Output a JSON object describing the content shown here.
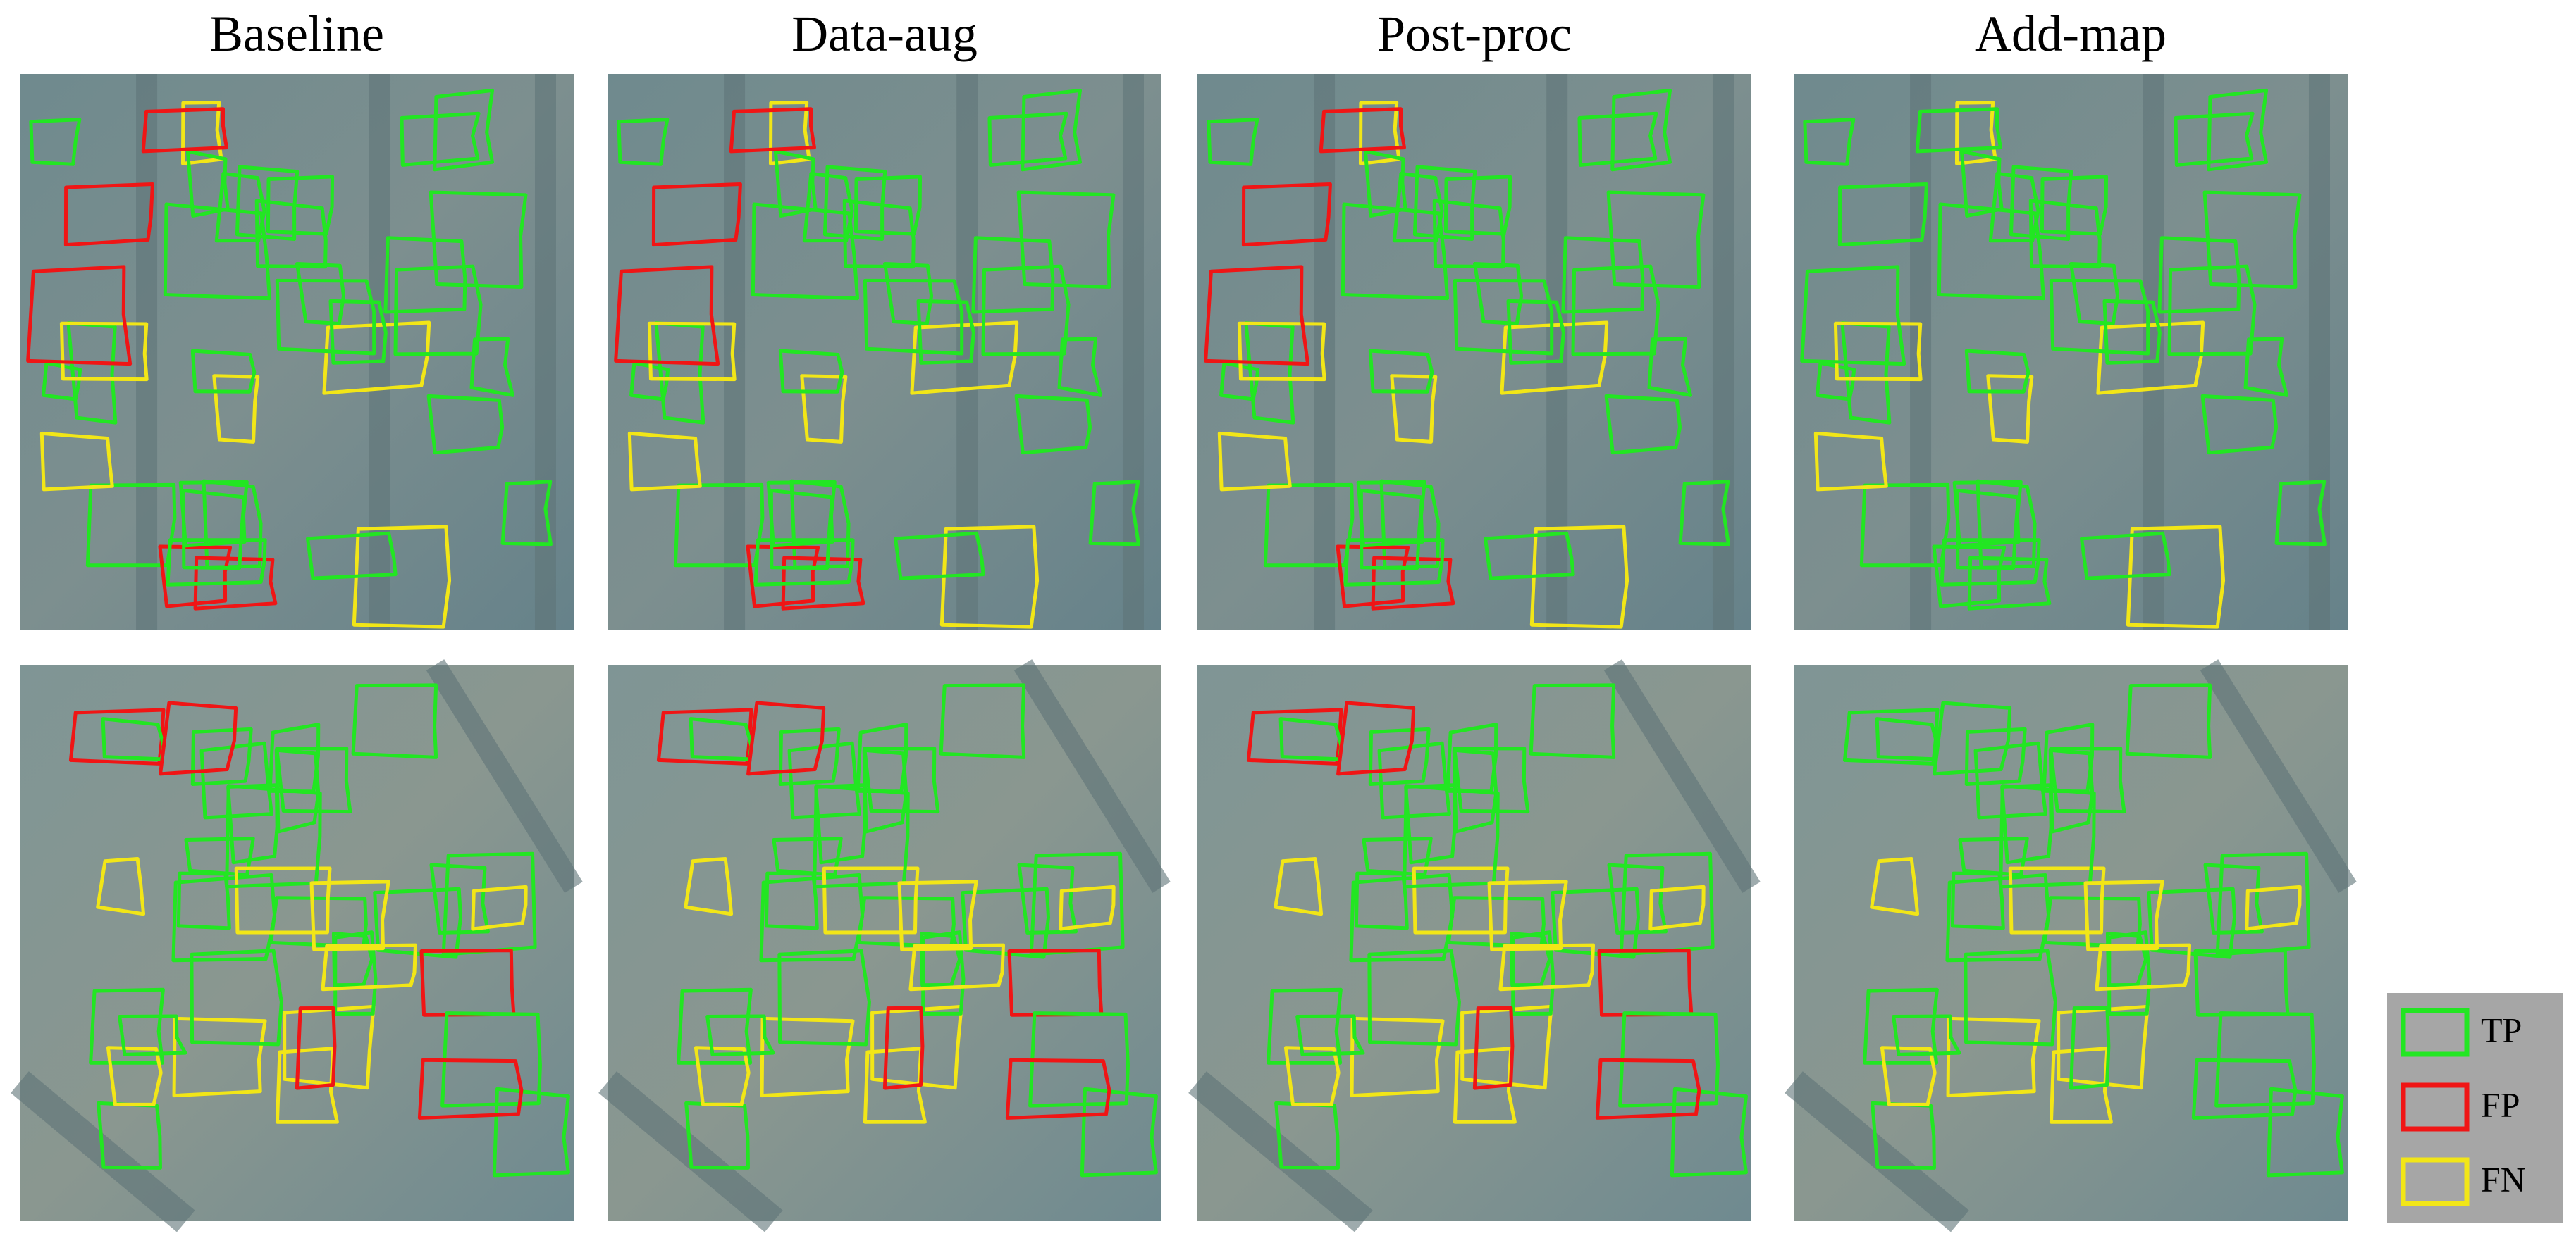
{
  "columns": [
    "Baseline",
    "Data-aug",
    "Post-proc",
    "Add-map"
  ],
  "legend": [
    {
      "label": "TP"
    },
    {
      "label": "FP"
    },
    {
      "label": "FN"
    }
  ]
}
